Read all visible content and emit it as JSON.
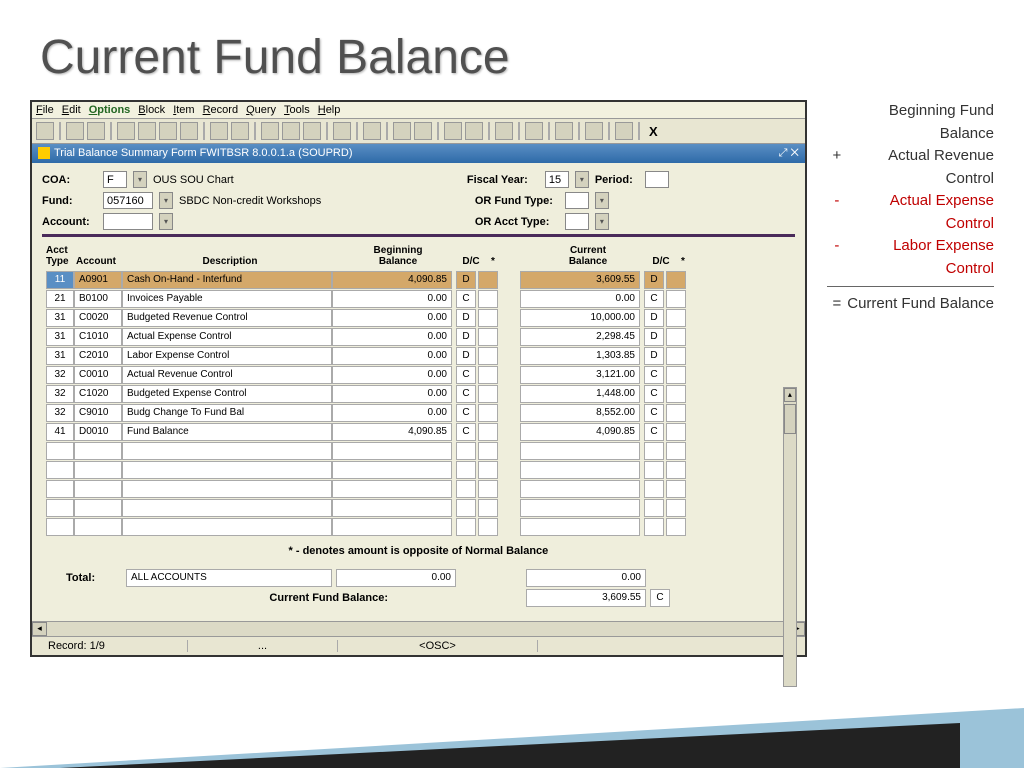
{
  "slide_title": "Current Fund Balance",
  "menubar": [
    "File",
    "Edit",
    "Options",
    "Block",
    "Item",
    "Record",
    "Query",
    "Tools",
    "Help"
  ],
  "menubar_active_index": 2,
  "titlebar": "Trial Balance Summary Form  FWITBSR  8.0.0.1.a  (SOUPRD)",
  "form": {
    "coa_label": "COA:",
    "coa_value": "F",
    "coa_desc": "OUS SOU Chart",
    "fund_label": "Fund:",
    "fund_value": "057160",
    "fund_desc": "SBDC Non-credit Workshops",
    "account_label": "Account:",
    "account_value": "",
    "fy_label": "Fiscal Year:",
    "fy_value": "15",
    "period_label": "Period:",
    "period_value": "",
    "orfund_label": "OR Fund Type:",
    "orfund_value": "",
    "oracct_label": "OR Acct Type:",
    "oracct_value": ""
  },
  "headers": {
    "type": "Acct\nType",
    "account": "Account",
    "desc": "Description",
    "beg": "Beginning\nBalance",
    "dc": "D/C",
    "star": "*",
    "cur": "Current\nBalance"
  },
  "rows": [
    {
      "type": "11",
      "acct": "A0901",
      "desc": "Cash On-Hand - Interfund",
      "beg": "4,090.85",
      "bdc": "D",
      "bstar": "",
      "cur": "3,609.55",
      "cdc": "D",
      "cstar": "",
      "hl": true
    },
    {
      "type": "21",
      "acct": "B0100",
      "desc": "Invoices Payable",
      "beg": "0.00",
      "bdc": "C",
      "bstar": "",
      "cur": "0.00",
      "cdc": "C",
      "cstar": ""
    },
    {
      "type": "31",
      "acct": "C0020",
      "desc": "Budgeted Revenue Control",
      "beg": "0.00",
      "bdc": "D",
      "bstar": "",
      "cur": "10,000.00",
      "cdc": "D",
      "cstar": ""
    },
    {
      "type": "31",
      "acct": "C1010",
      "desc": "Actual Expense Control",
      "beg": "0.00",
      "bdc": "D",
      "bstar": "",
      "cur": "2,298.45",
      "cdc": "D",
      "cstar": ""
    },
    {
      "type": "31",
      "acct": "C2010",
      "desc": "Labor Expense Control",
      "beg": "0.00",
      "bdc": "D",
      "bstar": "",
      "cur": "1,303.85",
      "cdc": "D",
      "cstar": ""
    },
    {
      "type": "32",
      "acct": "C0010",
      "desc": "Actual Revenue Control",
      "beg": "0.00",
      "bdc": "C",
      "bstar": "",
      "cur": "3,121.00",
      "cdc": "C",
      "cstar": ""
    },
    {
      "type": "32",
      "acct": "C1020",
      "desc": "Budgeted Expense Control",
      "beg": "0.00",
      "bdc": "C",
      "bstar": "",
      "cur": "1,448.00",
      "cdc": "C",
      "cstar": ""
    },
    {
      "type": "32",
      "acct": "C9010",
      "desc": "Budg Change To Fund Bal",
      "beg": "0.00",
      "bdc": "C",
      "bstar": "",
      "cur": "8,552.00",
      "cdc": "C",
      "cstar": ""
    },
    {
      "type": "41",
      "acct": "D0010",
      "desc": "Fund Balance",
      "beg": "4,090.85",
      "bdc": "C",
      "bstar": "",
      "cur": "4,090.85",
      "cdc": "C",
      "cstar": ""
    }
  ],
  "empty_rows": 5,
  "footnote": "* - denotes amount is opposite of Normal Balance",
  "totals": {
    "label": "Total:",
    "account": "ALL ACCOUNTS",
    "beg": "0.00",
    "cur": "0.00",
    "cfb_label": "Current Fund Balance:",
    "cfb_value": "3,609.55",
    "cfb_dc": "C"
  },
  "statusbar": {
    "record": "Record: 1/9",
    "mid": "...",
    "osc": "<OSC>"
  },
  "sidebar": [
    {
      "op": "",
      "txt": "Beginning Fund Balance",
      "neg": false
    },
    {
      "op": "+",
      "txt": "Actual Revenue Control",
      "neg": false
    },
    {
      "op": "-",
      "txt": "Actual Expense Control",
      "neg": true
    },
    {
      "op": "-",
      "txt": "Labor Expense Control",
      "neg": true
    },
    {
      "hr": true
    },
    {
      "op": "=",
      "txt": "Current Fund Balance",
      "neg": false
    }
  ]
}
